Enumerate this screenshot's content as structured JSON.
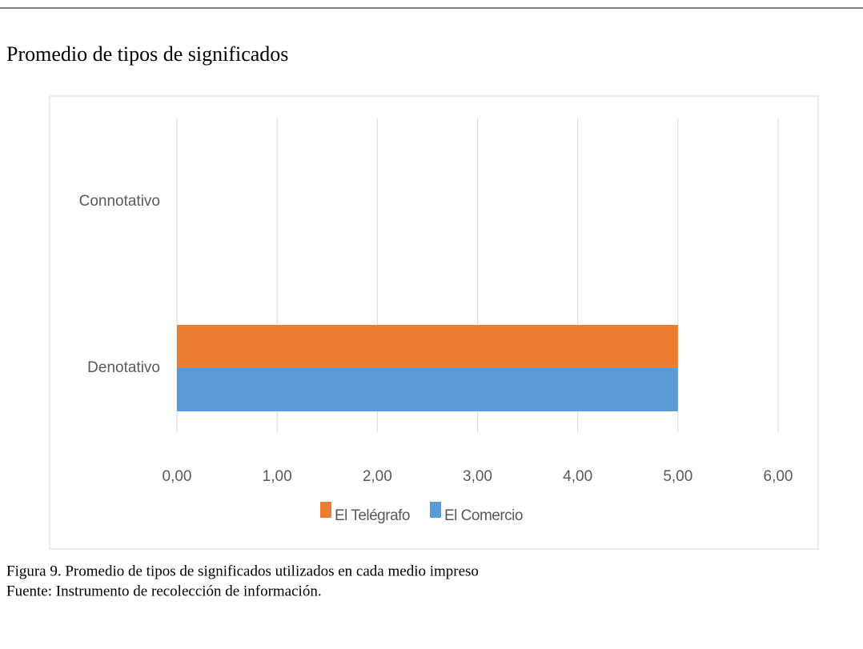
{
  "chart_data": {
    "type": "hbar",
    "title": "Promedio de tipos de significados",
    "categories": [
      "Denotativo",
      "Connotativo"
    ],
    "series": [
      {
        "name": "El Comercio",
        "color": "#5b9bd5",
        "values": [
          5,
          0
        ]
      },
      {
        "name": "El Telégrafo",
        "color": "#ed7d31",
        "values": [
          5,
          0
        ]
      }
    ],
    "xlim": [
      0,
      6
    ],
    "xticks": [
      {
        "value": 0,
        "label": "0,00"
      },
      {
        "value": 1,
        "label": "1,00"
      },
      {
        "value": 2,
        "label": "2,00"
      },
      {
        "value": 3,
        "label": "3,00"
      },
      {
        "value": 4,
        "label": "4,00"
      },
      {
        "value": 5,
        "label": "5,00"
      },
      {
        "value": 6,
        "label": "6,00"
      }
    ],
    "grid": true,
    "legend": "bottom"
  },
  "caption": {
    "figure": "Figura 9. Promedio de tipos de significados utilizados en cada medio impreso",
    "source": "Fuente: Instrumento de recolección de información."
  }
}
